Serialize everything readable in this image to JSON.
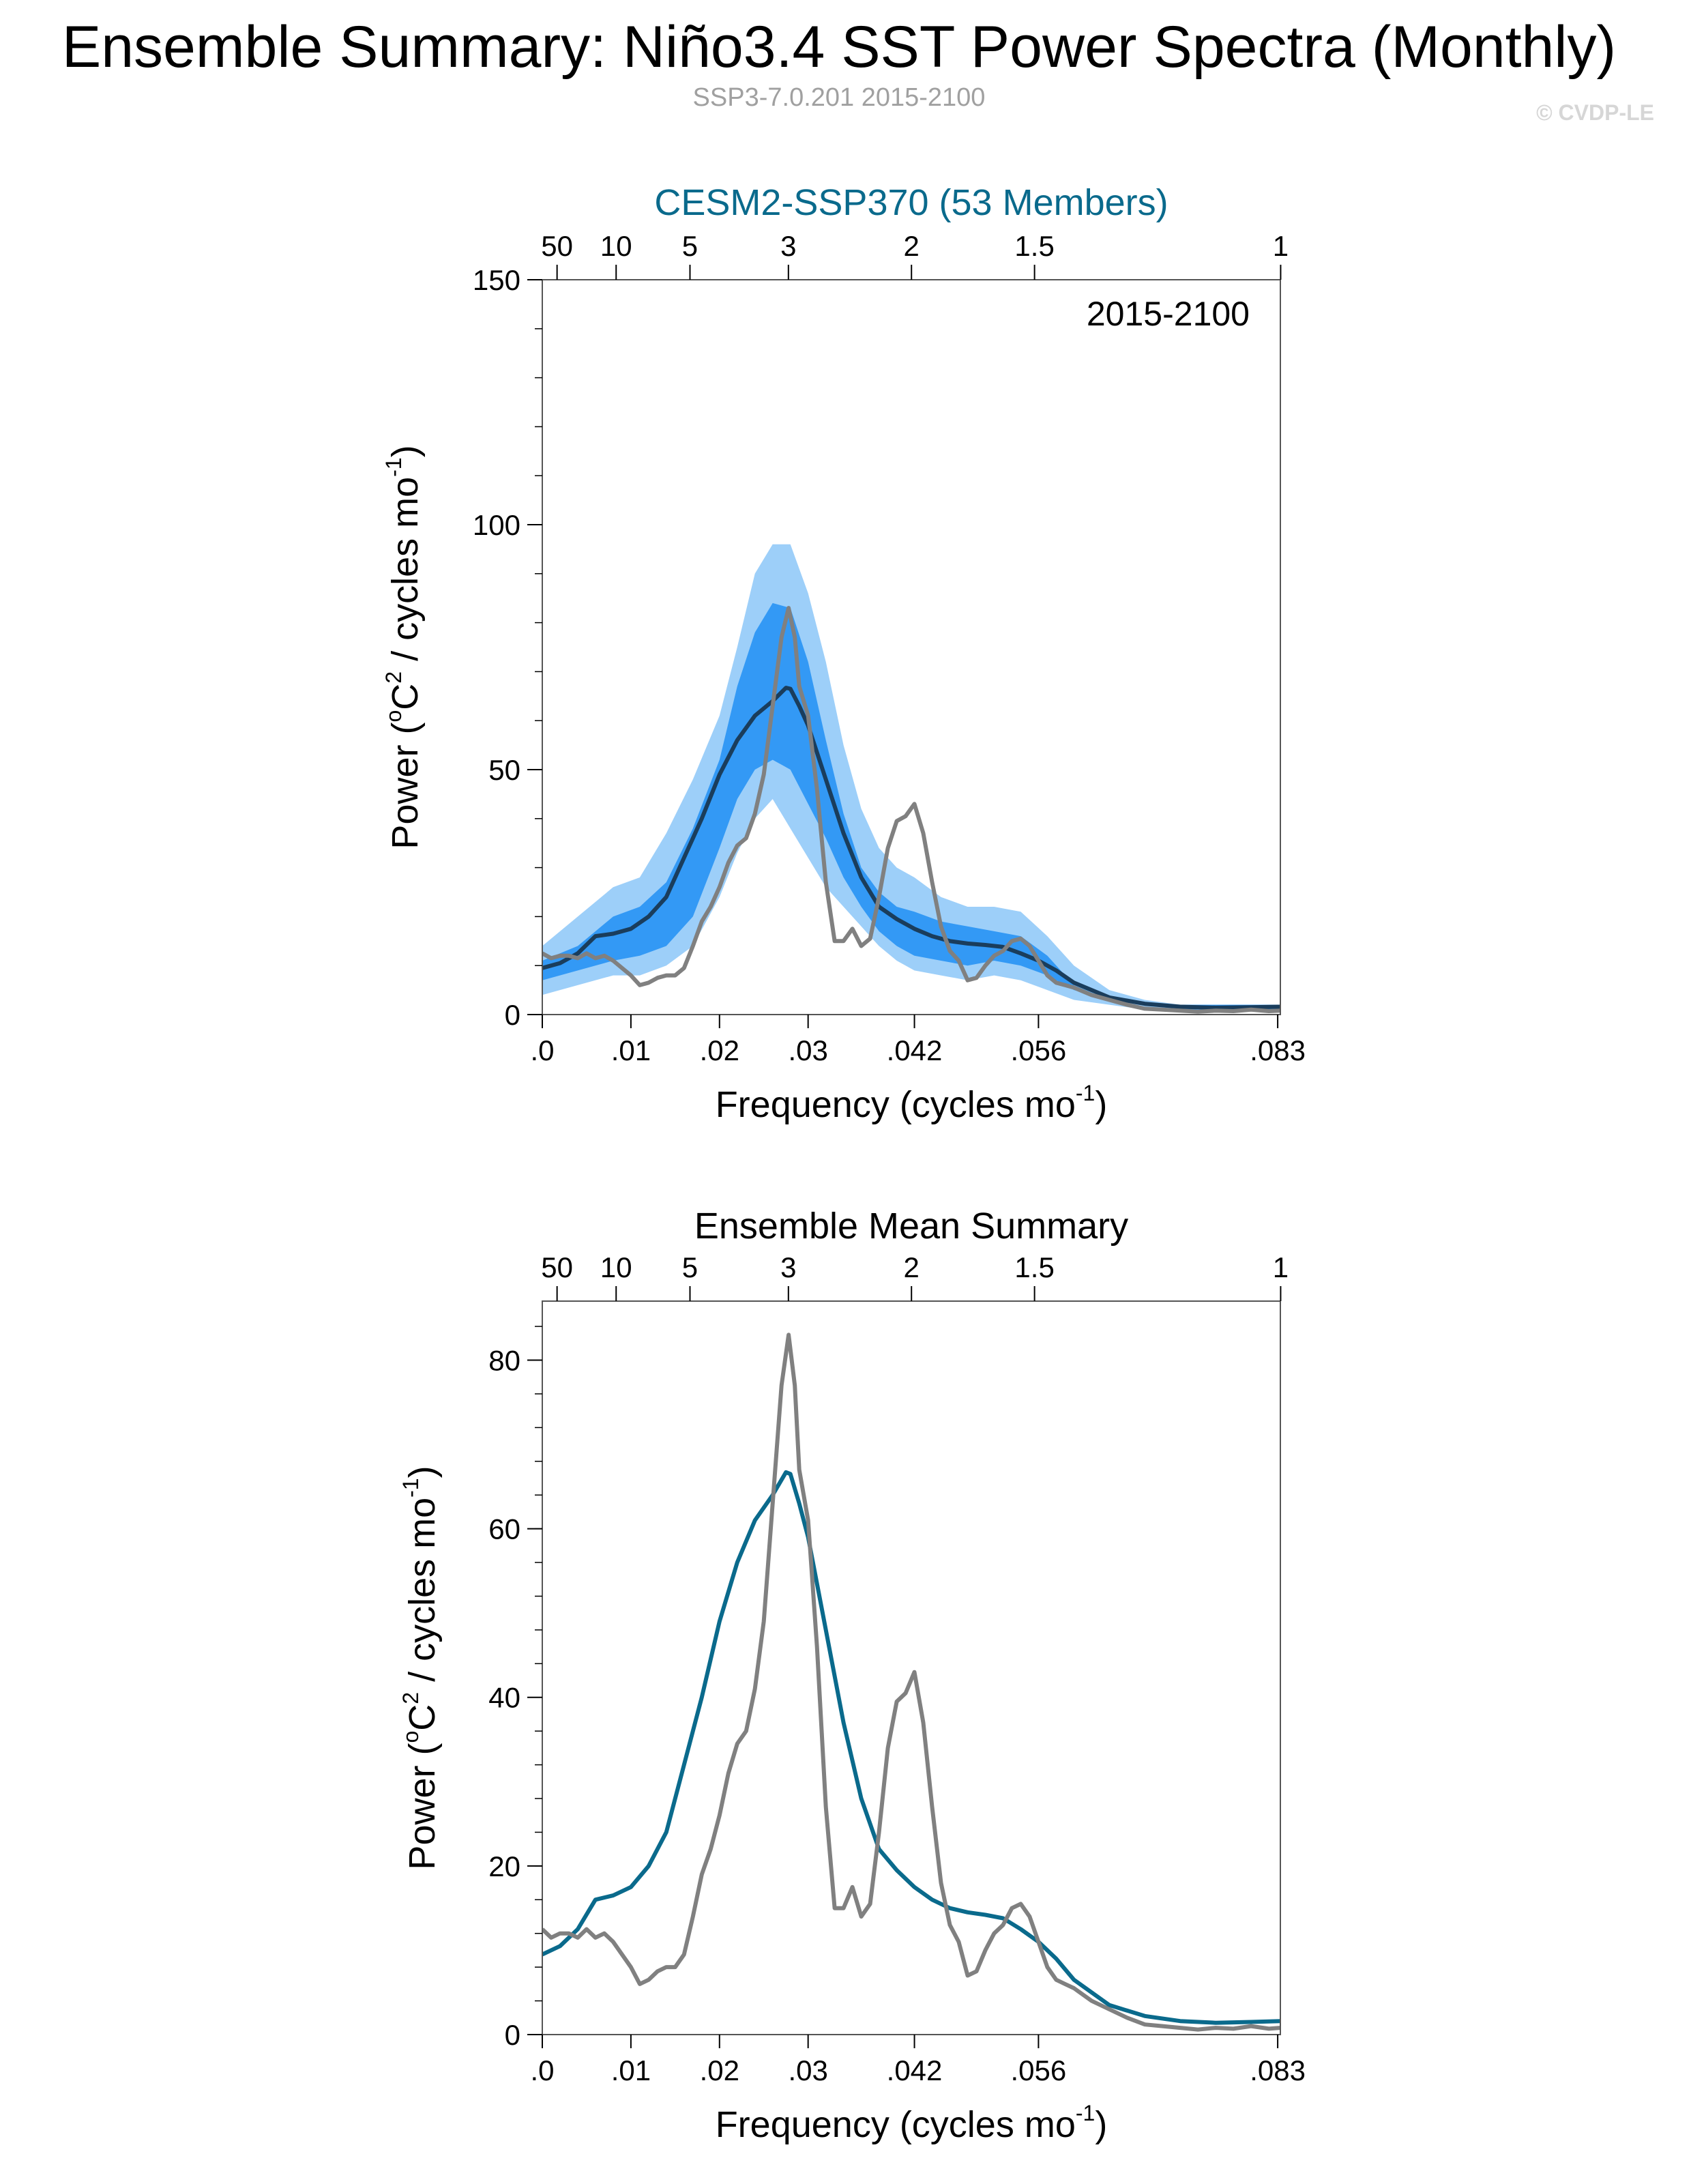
{
  "header": {
    "title": "Ensemble Summary: Niño3.4 SST Power Spectra (Monthly)",
    "subtitle": "SSP3-7.0.201 2015-2100",
    "copyright": "© CVDP-LE"
  },
  "colors": {
    "model": "#0a6a8c",
    "observed": "#808080",
    "mean_top": "#1a3d5c",
    "band_outer": "#9dcff9",
    "band_inner": "#3399f5",
    "axis": "#000000",
    "title_top": "#0a6a8c",
    "subtitle": "#a0a0a0",
    "copyright": "#d6d6d6"
  },
  "chart_data": [
    {
      "type": "area",
      "title": "CESM2-SSP370 (53 Members)",
      "annotation": "2015-2100",
      "xlabel_main": "Frequency (cycles mo",
      "xlabel_sup": "-1",
      "xlabel_end": ")",
      "ylabel_main": "Power (",
      "ylabel_o": "o",
      "ylabel_c": "C",
      "ylabel_2": "2",
      "ylabel_mid": " / cycles mo",
      "ylabel_sup": "-1",
      "ylabel_end": ")",
      "xlim": [
        0,
        0.0833
      ],
      "ylim": [
        0,
        150
      ],
      "x_ticks": [
        0,
        0.01,
        0.02,
        0.03,
        0.042,
        0.056,
        0.083
      ],
      "x_tick_labels": [
        ".0",
        ".01",
        ".02",
        ".03",
        ".042",
        ".056",
        ".083"
      ],
      "y_ticks": [
        0,
        50,
        100,
        150
      ],
      "y_tick_labels": [
        "0",
        "50",
        "100",
        "150"
      ],
      "period_ticks": [
        50,
        10,
        5,
        3,
        2,
        1.5,
        1
      ],
      "period_tick_labels": [
        "50",
        "10",
        "5",
        "3",
        "2",
        "1.5",
        "1"
      ],
      "series": [
        {
          "role": "band_outer",
          "x": [
            0,
            0.004,
            0.008,
            0.011,
            0.014,
            0.017,
            0.02,
            0.022,
            0.024,
            0.026,
            0.028,
            0.03,
            0.032,
            0.034,
            0.036,
            0.038,
            0.04,
            0.042,
            0.045,
            0.048,
            0.051,
            0.054,
            0.057,
            0.06,
            0.064,
            0.068,
            0.072,
            0.076,
            0.0833
          ],
          "lower": [
            4,
            6,
            8,
            8,
            10,
            14,
            24,
            33,
            40,
            44,
            38,
            32,
            26,
            22,
            18,
            14,
            11,
            9,
            8,
            7,
            8,
            7,
            5,
            3,
            2,
            1,
            1,
            1,
            1
          ],
          "upper": [
            14,
            20,
            26,
            28,
            37,
            48,
            61,
            75,
            90,
            96,
            96,
            86,
            72,
            55,
            42,
            34,
            30,
            28,
            24,
            22,
            22,
            21,
            16,
            10,
            5,
            3,
            2,
            2,
            2
          ]
        },
        {
          "role": "band_inner",
          "x": [
            0,
            0.004,
            0.008,
            0.011,
            0.014,
            0.017,
            0.02,
            0.022,
            0.024,
            0.026,
            0.028,
            0.03,
            0.032,
            0.034,
            0.036,
            0.038,
            0.04,
            0.042,
            0.045,
            0.048,
            0.051,
            0.054,
            0.057,
            0.06,
            0.064,
            0.068,
            0.072,
            0.076,
            0.0833
          ],
          "lower": [
            7,
            9,
            11,
            12,
            14,
            20,
            34,
            44,
            50,
            52,
            50,
            43,
            36,
            28,
            22,
            17,
            14,
            12,
            11,
            10,
            11,
            10,
            8,
            5,
            3,
            2,
            1,
            1,
            1
          ],
          "upper": [
            11,
            14,
            20,
            22,
            27,
            38,
            52,
            67,
            78,
            84,
            83,
            72,
            56,
            41,
            30,
            25,
            22,
            21,
            19,
            18,
            17,
            16,
            12,
            6,
            3,
            2,
            2,
            2,
            2
          ]
        },
        {
          "role": "mean",
          "x": [
            0,
            0.002,
            0.004,
            0.006,
            0.008,
            0.01,
            0.012,
            0.014,
            0.016,
            0.018,
            0.02,
            0.022,
            0.024,
            0.026,
            0.0275,
            0.028,
            0.029,
            0.03,
            0.032,
            0.034,
            0.036,
            0.038,
            0.04,
            0.042,
            0.044,
            0.046,
            0.048,
            0.05,
            0.052,
            0.054,
            0.056,
            0.058,
            0.06,
            0.064,
            0.068,
            0.072,
            0.076,
            0.08,
            0.0833
          ],
          "values": [
            9.5,
            10.5,
            12.5,
            16,
            16.5,
            17.5,
            20,
            24,
            32,
            40,
            49,
            56,
            61,
            64,
            66.7,
            66.5,
            63,
            59,
            48,
            37,
            28,
            22,
            19.5,
            17.5,
            16,
            15,
            14.5,
            14.2,
            13.8,
            12.5,
            11,
            9,
            6.5,
            3.5,
            2.2,
            1.6,
            1.4,
            1.5,
            1.6
          ]
        },
        {
          "role": "observed",
          "x": [
            0,
            0.001,
            0.002,
            0.003,
            0.004,
            0.005,
            0.006,
            0.007,
            0.008,
            0.009,
            0.01,
            0.011,
            0.012,
            0.013,
            0.014,
            0.015,
            0.016,
            0.017,
            0.018,
            0.019,
            0.02,
            0.021,
            0.022,
            0.023,
            0.024,
            0.025,
            0.026,
            0.027,
            0.0278,
            0.0285,
            0.029,
            0.03,
            0.031,
            0.032,
            0.033,
            0.034,
            0.035,
            0.036,
            0.037,
            0.038,
            0.039,
            0.04,
            0.041,
            0.042,
            0.043,
            0.044,
            0.045,
            0.046,
            0.047,
            0.048,
            0.049,
            0.05,
            0.051,
            0.052,
            0.053,
            0.054,
            0.055,
            0.056,
            0.057,
            0.058,
            0.059,
            0.06,
            0.062,
            0.064,
            0.066,
            0.068,
            0.07,
            0.072,
            0.074,
            0.076,
            0.078,
            0.08,
            0.082,
            0.0833
          ],
          "values": [
            12.5,
            11.5,
            12,
            12,
            11.5,
            12.5,
            11.5,
            12,
            11,
            9.5,
            8,
            6,
            6.5,
            7.5,
            8,
            8,
            9.5,
            14,
            19,
            22,
            26,
            31,
            34.5,
            36,
            41,
            49,
            63,
            77,
            83,
            77,
            67,
            61,
            46,
            27,
            15,
            15,
            17.5,
            14,
            15.5,
            24,
            34,
            39.5,
            40.5,
            43,
            37,
            27,
            18,
            13,
            11,
            7,
            7.5,
            10,
            12,
            13,
            15,
            15.5,
            14,
            11,
            8,
            6.5,
            6,
            5.5,
            4,
            3,
            2,
            1.2,
            1,
            0.8,
            0.6,
            0.8,
            0.7,
            1,
            0.7,
            0.8
          ]
        }
      ]
    },
    {
      "type": "line",
      "title": "Ensemble Mean Summary",
      "xlabel_main": "Frequency (cycles mo",
      "xlabel_sup": "-1",
      "xlabel_end": ")",
      "ylabel_main": "Power (",
      "ylabel_o": "o",
      "ylabel_c": "C",
      "ylabel_2": "2",
      "ylabel_mid": " / cycles mo",
      "ylabel_sup": "-1",
      "ylabel_end": ")",
      "xlim": [
        0,
        0.0833
      ],
      "ylim": [
        0,
        87
      ],
      "x_ticks": [
        0,
        0.01,
        0.02,
        0.03,
        0.042,
        0.056,
        0.083
      ],
      "x_tick_labels": [
        ".0",
        ".01",
        ".02",
        ".03",
        ".042",
        ".056",
        ".083"
      ],
      "y_ticks": [
        0,
        20,
        40,
        60,
        80
      ],
      "y_tick_labels": [
        "0",
        "20",
        "40",
        "60",
        "80"
      ],
      "period_ticks": [
        50,
        10,
        5,
        3,
        2,
        1.5,
        1
      ],
      "period_tick_labels": [
        "50",
        "10",
        "5",
        "3",
        "2",
        "1.5",
        "1"
      ],
      "series": [
        {
          "role": "mean",
          "x": [
            0,
            0.002,
            0.004,
            0.006,
            0.008,
            0.01,
            0.012,
            0.014,
            0.016,
            0.018,
            0.02,
            0.022,
            0.024,
            0.026,
            0.0275,
            0.028,
            0.029,
            0.03,
            0.032,
            0.034,
            0.036,
            0.038,
            0.04,
            0.042,
            0.044,
            0.046,
            0.048,
            0.05,
            0.052,
            0.054,
            0.056,
            0.058,
            0.06,
            0.064,
            0.068,
            0.072,
            0.076,
            0.08,
            0.0833
          ],
          "values": [
            9.5,
            10.5,
            12.5,
            16,
            16.5,
            17.5,
            20,
            24,
            32,
            40,
            49,
            56,
            61,
            64,
            66.7,
            66.5,
            63,
            59,
            48,
            37,
            28,
            22,
            19.5,
            17.5,
            16,
            15,
            14.5,
            14.2,
            13.8,
            12.5,
            11,
            9,
            6.5,
            3.5,
            2.2,
            1.6,
            1.4,
            1.5,
            1.6
          ]
        },
        {
          "role": "observed",
          "x": [
            0,
            0.001,
            0.002,
            0.003,
            0.004,
            0.005,
            0.006,
            0.007,
            0.008,
            0.009,
            0.01,
            0.011,
            0.012,
            0.013,
            0.014,
            0.015,
            0.016,
            0.017,
            0.018,
            0.019,
            0.02,
            0.021,
            0.022,
            0.023,
            0.024,
            0.025,
            0.026,
            0.027,
            0.0278,
            0.0285,
            0.029,
            0.03,
            0.031,
            0.032,
            0.033,
            0.034,
            0.035,
            0.036,
            0.037,
            0.038,
            0.039,
            0.04,
            0.041,
            0.042,
            0.043,
            0.044,
            0.045,
            0.046,
            0.047,
            0.048,
            0.049,
            0.05,
            0.051,
            0.052,
            0.053,
            0.054,
            0.055,
            0.056,
            0.057,
            0.058,
            0.059,
            0.06,
            0.062,
            0.064,
            0.066,
            0.068,
            0.07,
            0.072,
            0.074,
            0.076,
            0.078,
            0.08,
            0.082,
            0.0833
          ],
          "values": [
            12.5,
            11.5,
            12,
            12,
            11.5,
            12.5,
            11.5,
            12,
            11,
            9.5,
            8,
            6,
            6.5,
            7.5,
            8,
            8,
            9.5,
            14,
            19,
            22,
            26,
            31,
            34.5,
            36,
            41,
            49,
            63,
            77,
            83,
            77,
            67,
            61,
            46,
            27,
            15,
            15,
            17.5,
            14,
            15.5,
            24,
            34,
            39.5,
            40.5,
            43,
            37,
            27,
            18,
            13,
            11,
            7,
            7.5,
            10,
            12,
            13,
            15,
            15.5,
            14,
            11,
            8,
            6.5,
            6,
            5.5,
            4,
            3,
            2,
            1.2,
            1,
            0.8,
            0.6,
            0.8,
            0.7,
            1,
            0.7,
            0.8
          ]
        }
      ]
    }
  ]
}
